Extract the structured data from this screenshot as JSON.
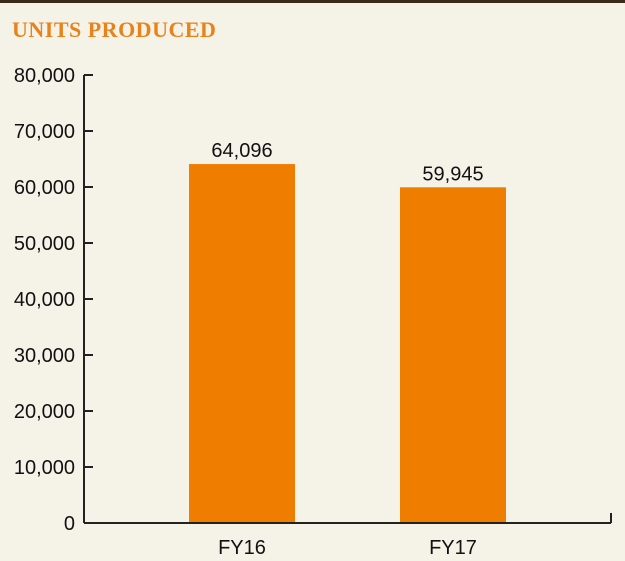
{
  "chart_data": {
    "type": "bar",
    "title": "UNITS PRODUCED",
    "categories": [
      "FY16",
      "FY17"
    ],
    "values": [
      64096,
      59945
    ],
    "data_labels": [
      "64,096",
      "59,945"
    ],
    "ylim": [
      0,
      80000
    ],
    "yticks": [
      0,
      10000,
      20000,
      30000,
      40000,
      50000,
      60000,
      70000,
      80000
    ],
    "ytick_labels": [
      "0",
      "10,000",
      "20,000",
      "30,000",
      "40,000",
      "50,000",
      "60,000",
      "70,000",
      "80,000"
    ],
    "xlabel": "",
    "ylabel": "",
    "grid": false,
    "legend": "none",
    "bar_color": "#ef7d00",
    "title_color": "#e8821a",
    "background_color": "#f5f2e8"
  }
}
